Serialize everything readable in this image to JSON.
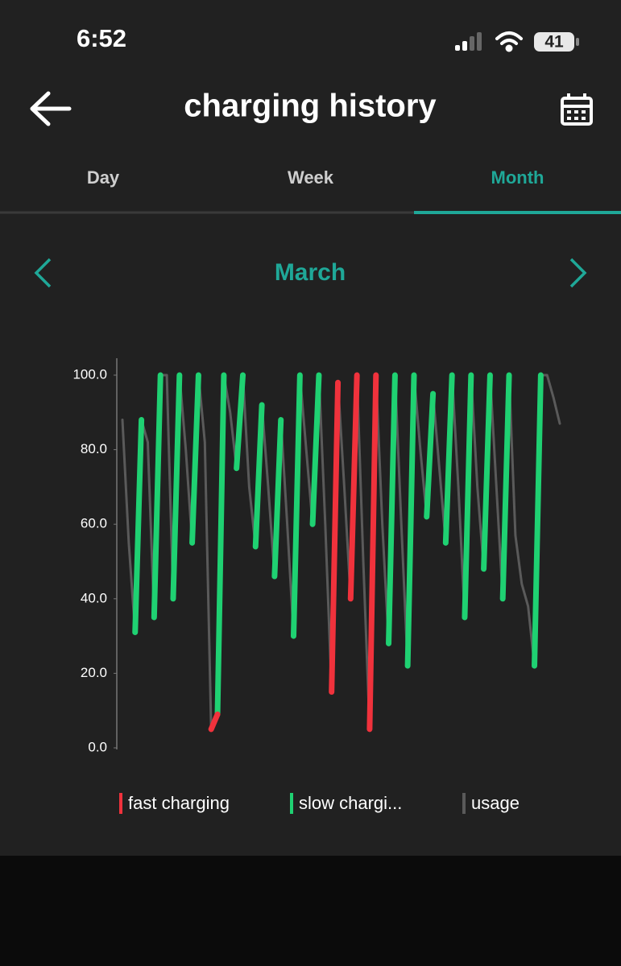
{
  "status_bar": {
    "time": "6:52",
    "battery": "41"
  },
  "header": {
    "title": "charging history"
  },
  "tabs": [
    "Day",
    "Week",
    "Month"
  ],
  "active_tab": 2,
  "period": "March",
  "chart_data": {
    "type": "line",
    "categories": [
      null,
      null,
      null,
      null,
      null,
      null,
      null,
      null,
      null,
      null,
      null,
      null,
      null,
      null,
      null,
      null,
      null,
      null,
      null,
      null,
      null,
      null,
      null,
      null,
      null,
      null,
      null,
      null,
      null,
      null,
      null,
      null,
      null,
      null,
      null,
      null,
      null,
      null,
      null,
      null,
      null,
      null,
      null,
      null,
      null,
      null,
      null,
      null,
      null,
      null,
      null,
      null,
      null,
      null,
      null,
      null,
      null,
      null,
      null,
      null,
      null,
      null,
      null,
      null,
      null,
      null,
      null,
      null,
      null,
      null
    ],
    "ylim": [
      0,
      100
    ],
    "yticks": [
      {
        "value": 0,
        "label": "0.0"
      },
      {
        "value": 20,
        "label": "20.0"
      },
      {
        "value": 40,
        "label": "40.0"
      },
      {
        "value": 60,
        "label": "60.0"
      },
      {
        "value": 80,
        "label": "80.0"
      },
      {
        "value": 100,
        "label": "100.0"
      }
    ],
    "series": [
      {
        "name": "usage",
        "color": "#5a5a5a",
        "values": [
          88,
          55,
          31,
          88,
          82,
          35,
          100,
          100,
          40,
          100,
          80,
          55,
          100,
          82,
          5,
          null,
          100,
          90,
          75,
          100,
          70,
          54,
          92,
          70,
          46,
          88,
          60,
          30,
          100,
          80,
          60,
          100,
          60,
          15,
          98,
          70,
          40,
          100,
          50,
          5,
          100,
          60,
          28,
          100,
          60,
          22,
          100,
          80,
          62,
          95,
          75,
          55,
          100,
          70,
          35,
          100,
          70,
          48,
          100,
          70,
          40,
          100,
          57,
          44,
          38,
          22,
          100,
          100,
          94,
          87
        ]
      },
      {
        "name": "slow chargi...",
        "color": "#1fd172",
        "values": [
          null,
          null,
          31,
          88,
          null,
          35,
          100,
          null,
          40,
          100,
          null,
          55,
          100,
          null,
          null,
          9,
          100,
          null,
          75,
          100,
          null,
          54,
          92,
          null,
          46,
          88,
          null,
          30,
          100,
          null,
          60,
          100,
          null,
          null,
          null,
          null,
          null,
          null,
          null,
          null,
          null,
          null,
          28,
          100,
          null,
          22,
          100,
          null,
          62,
          95,
          null,
          55,
          100,
          null,
          35,
          100,
          null,
          48,
          100,
          null,
          40,
          100,
          null,
          null,
          null,
          22,
          100,
          null,
          null,
          null
        ]
      },
      {
        "name": "fast charging",
        "color": "#f0323c",
        "values": [
          null,
          null,
          null,
          null,
          null,
          null,
          null,
          null,
          null,
          null,
          null,
          null,
          null,
          null,
          5,
          9,
          null,
          null,
          null,
          null,
          null,
          null,
          null,
          null,
          null,
          null,
          null,
          null,
          null,
          null,
          null,
          null,
          null,
          15,
          98,
          null,
          40,
          100,
          null,
          5,
          100,
          null,
          null,
          null,
          null,
          null,
          null,
          null,
          null,
          null,
          null,
          null,
          null,
          null,
          null,
          null,
          null,
          null,
          null,
          null,
          null,
          null,
          null,
          null,
          null,
          null,
          null,
          null,
          null,
          null
        ]
      }
    ],
    "legend": "bottom"
  }
}
